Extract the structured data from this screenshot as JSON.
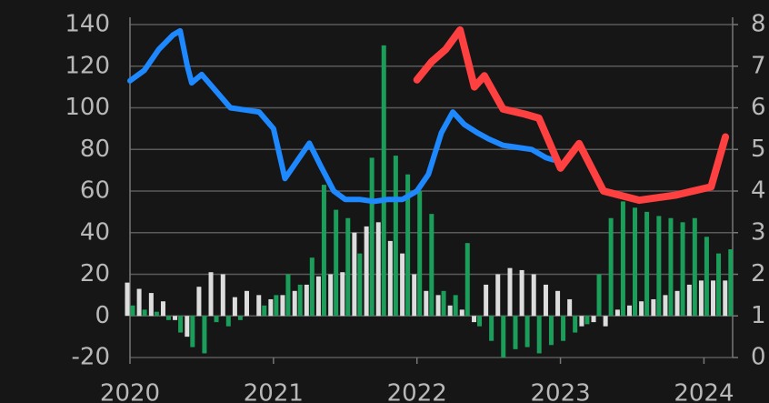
{
  "chart_data": {
    "type": "combo",
    "xlim": [
      2020,
      2024.2
    ],
    "xticks": [
      2020,
      2021,
      2022,
      2023,
      2024
    ],
    "ylim": [
      -20,
      140
    ],
    "yticks": [
      -20,
      0,
      20,
      40,
      60,
      80,
      100,
      120,
      140
    ],
    "y2lim": [
      0,
      8
    ],
    "y2ticks": [
      0,
      1,
      2,
      3,
      4,
      5,
      6,
      7,
      8
    ],
    "grid": true,
    "series": [
      {
        "type": "bar",
        "color": "#dddddd",
        "offset": -1,
        "x": [
          2020,
          2020.083,
          2020.167,
          2020.25,
          2020.333,
          2020.417,
          2020.5,
          2020.583,
          2020.667,
          2020.75,
          2020.833,
          2020.917,
          2021,
          2021.083,
          2021.167,
          2021.25,
          2021.333,
          2021.417,
          2021.5,
          2021.583,
          2021.667,
          2021.75,
          2021.833,
          2021.917,
          2022,
          2022.083,
          2022.167,
          2022.25,
          2022.333,
          2022.417,
          2022.5,
          2022.583,
          2022.667,
          2022.75,
          2022.833,
          2022.917,
          2023,
          2023.083,
          2023.167,
          2023.25,
          2023.333,
          2023.417,
          2023.5,
          2023.583,
          2023.667,
          2023.75,
          2023.833,
          2023.917,
          2024,
          2024.083,
          2024.167
        ],
        "values": [
          16,
          13,
          11,
          7,
          -2,
          -10,
          14,
          21,
          20,
          9,
          12,
          10,
          8,
          10,
          12,
          15,
          19,
          20,
          21,
          40,
          43,
          45,
          36,
          30,
          20,
          12,
          10,
          5,
          3,
          -3,
          15,
          20,
          23,
          22,
          20,
          15,
          12,
          8,
          -5,
          -3,
          -5,
          3,
          5,
          7,
          8,
          10,
          12,
          15,
          17,
          17,
          17
        ]
      },
      {
        "type": "bar",
        "color": "#1a9e5a",
        "offset": 1,
        "x": [
          2020,
          2020.083,
          2020.167,
          2020.25,
          2020.333,
          2020.417,
          2020.5,
          2020.583,
          2020.667,
          2020.75,
          2020.833,
          2020.917,
          2021,
          2021.083,
          2021.167,
          2021.25,
          2021.333,
          2021.417,
          2021.5,
          2021.583,
          2021.667,
          2021.75,
          2021.833,
          2021.917,
          2022,
          2022.083,
          2022.167,
          2022.25,
          2022.333,
          2022.417,
          2022.5,
          2022.583,
          2022.667,
          2022.75,
          2022.833,
          2022.917,
          2023,
          2023.083,
          2023.167,
          2023.25,
          2023.333,
          2023.417,
          2023.5,
          2023.583,
          2023.667,
          2023.75,
          2023.833,
          2023.917,
          2024,
          2024.083,
          2024.167
        ],
        "values": [
          5,
          3,
          2,
          -2,
          -8,
          -15,
          -18,
          -3,
          -5,
          -2,
          0,
          5,
          10,
          20,
          15,
          28,
          63,
          51,
          47,
          30,
          76,
          130,
          77,
          68,
          60,
          49,
          12,
          10,
          35,
          -5,
          -12,
          -20,
          -16,
          -15,
          -18,
          -14,
          -12,
          -8,
          -4,
          20,
          47,
          55,
          52,
          50,
          48,
          47,
          45,
          47,
          38,
          30,
          32
        ]
      },
      {
        "type": "line",
        "color": "#1e88ff",
        "width": 6,
        "x": [
          2020,
          2020.1,
          2020.2,
          2020.3,
          2020.35,
          2020.4,
          2020.43,
          2020.5,
          2020.6,
          2020.7,
          2020.8,
          2020.9,
          2021,
          2021.08,
          2021.17,
          2021.25,
          2021.33,
          2021.42,
          2021.5,
          2021.6,
          2021.7,
          2021.8,
          2021.9,
          2022,
          2022.08,
          2022.17,
          2022.25,
          2022.33,
          2022.42,
          2022.5,
          2022.6,
          2022.7,
          2022.8,
          2022.9,
          2022.95
        ],
        "values": [
          113,
          118,
          128,
          135,
          137,
          120,
          112,
          116,
          108,
          100,
          99,
          98,
          90,
          66,
          75,
          83,
          72,
          60,
          56,
          56,
          55,
          56,
          56,
          60,
          68,
          88,
          98,
          92,
          88,
          85,
          82,
          81,
          80,
          76,
          75
        ]
      },
      {
        "type": "line",
        "color": "#ff4040",
        "width": 8,
        "axis": "y2",
        "x": [
          2022,
          2022.1,
          2022.2,
          2022.3,
          2022.4,
          2022.47,
          2022.6,
          2022.75,
          2022.85,
          2023,
          2023.13,
          2023.3,
          2023.55,
          2023.8,
          2024.05,
          2024.15
        ],
        "values": [
          6.67,
          7.1,
          7.4,
          7.87,
          6.5,
          6.77,
          5.97,
          5.85,
          5.75,
          4.55,
          5.14,
          4.0,
          3.78,
          3.9,
          4.1,
          5.3
        ]
      }
    ]
  }
}
